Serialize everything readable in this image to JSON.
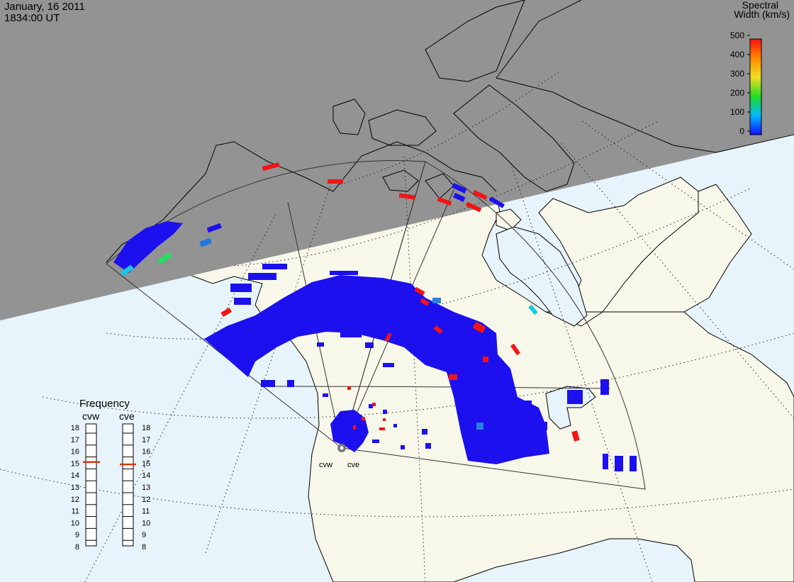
{
  "header": {
    "date": "January, 16 2011",
    "time": "1834:00 UT"
  },
  "colorbar": {
    "title_line1": "Spectral",
    "title_line2": "Width (km/s)",
    "ticks": [
      "0",
      "100",
      "200",
      "300",
      "400",
      "500"
    ]
  },
  "radars": [
    {
      "code": "cvw"
    },
    {
      "code": "cve"
    }
  ],
  "frequency_panel": {
    "title": "Frequency",
    "left_label": "cvw",
    "right_label": "cve",
    "ticks": [
      "18",
      "17",
      "16",
      "15",
      "14",
      "13",
      "12",
      "11",
      "10",
      "9",
      "8"
    ],
    "cvw_mhz": 15.1,
    "cve_mhz": 14.9
  },
  "colors": {
    "night": "#939393",
    "ocean": "#e8f4fc",
    "land": "#f8f8ea",
    "echo_low": "#1c10ee",
    "echo_high": "#f21414",
    "echo_mid_cyan": "#16c8e6",
    "echo_mid_green": "#22e060",
    "freq_marker": "#d03a10"
  }
}
